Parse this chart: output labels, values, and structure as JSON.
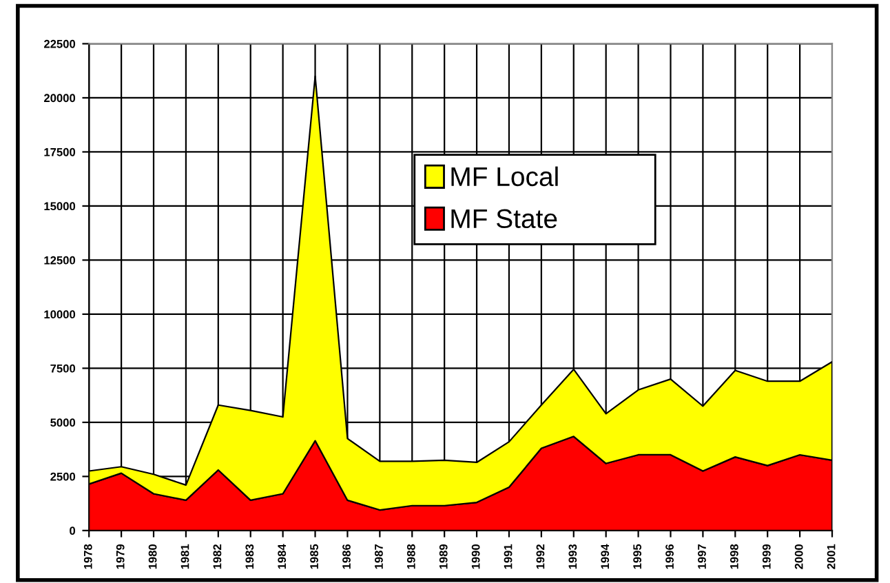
{
  "chart_data": {
    "type": "area",
    "stacked": true,
    "categories": [
      "1978",
      "1979",
      "1980",
      "1981",
      "1982",
      "1983",
      "1984",
      "1985",
      "1986",
      "1987",
      "1988",
      "1989",
      "1990",
      "1991",
      "1992",
      "1993",
      "1994",
      "1995",
      "1996",
      "1997",
      "1998",
      "1999",
      "2000",
      "2001"
    ],
    "series": [
      {
        "name": "MF State",
        "color": "#ff0000",
        "values": [
          2150,
          2650,
          1700,
          1400,
          2800,
          1400,
          1700,
          4150,
          1400,
          950,
          1150,
          1150,
          1300,
          2000,
          3800,
          4350,
          3100,
          3500,
          3500,
          2750,
          3400,
          3000,
          3500,
          3250
        ]
      },
      {
        "name": "MF Local",
        "color": "#ffff00",
        "values": [
          600,
          300,
          900,
          700,
          3000,
          4150,
          3550,
          16850,
          2850,
          2250,
          2050,
          2100,
          1850,
          2100,
          2000,
          3100,
          2300,
          3000,
          3500,
          3000,
          4000,
          3900,
          3400,
          4550
        ]
      }
    ],
    "ylim": [
      0,
      22500
    ],
    "yticks": [
      0,
      2500,
      5000,
      7500,
      10000,
      12500,
      15000,
      17500,
      20000,
      22500
    ],
    "grid": true,
    "legend": "top right"
  }
}
